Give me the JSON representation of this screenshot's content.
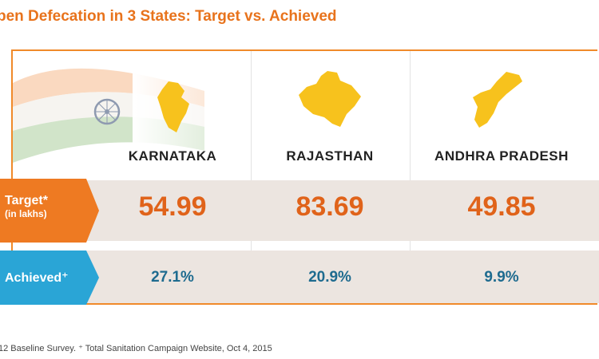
{
  "title": "pen Defecation in 3 States: Target vs. Achieved",
  "states": [
    {
      "name": "KARNATAKA",
      "target": "54.99",
      "achieved": "27.1%"
    },
    {
      "name": "RAJASTHAN",
      "target": "83.69",
      "achieved": "20.9%"
    },
    {
      "name": "ANDHRA PRADESH",
      "target": "49.85",
      "achieved": "9.9%"
    }
  ],
  "rows": {
    "target_label": "Target*",
    "target_sublabel": "(in lakhs)",
    "achieved_label": "Achieved⁺"
  },
  "footnote": "12 Baseline Survey. ⁺ Total Sanitation Campaign Website, Oct 4, 2015",
  "colors": {
    "title": "#e8731c",
    "frame": "#f08a2a",
    "target_badge": "#ee7a22",
    "achieved_badge": "#2aa5d6",
    "target_value": "#e0631a",
    "achieved_value": "#1e6b8f",
    "state_fill": "#f7c21d",
    "band": "#ece5e0"
  }
}
